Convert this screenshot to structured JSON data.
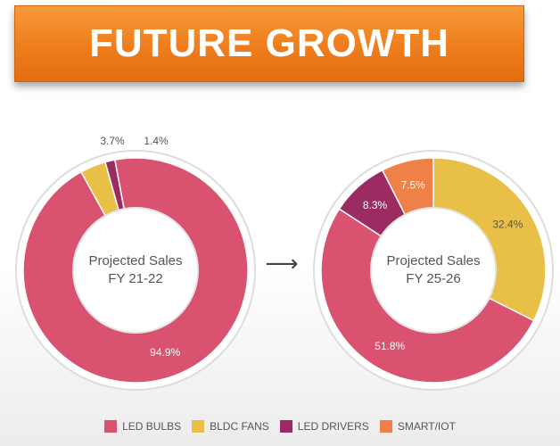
{
  "banner": {
    "title": "FUTURE GROWTH"
  },
  "colors": {
    "led_bulbs": "#d9526f",
    "bldc_fans": "#e8c047",
    "led_drivers": "#9b2c62",
    "smart_iot": "#ef8048"
  },
  "arrow_text": "⟶",
  "chart_data": [
    {
      "type": "pie",
      "variant": "donut",
      "title": "",
      "center_label": [
        "Projected Sales",
        "FY 21-22"
      ],
      "categories": [
        "LED BULBS",
        "BLDC FANS",
        "LED DRIVERS"
      ],
      "values": [
        94.9,
        3.7,
        1.4
      ],
      "labels": [
        "94.9%",
        "3.7%",
        "1.4%"
      ]
    },
    {
      "type": "pie",
      "variant": "donut",
      "title": "",
      "center_label": [
        "Projected Sales",
        "FY 25-26"
      ],
      "categories": [
        "BLDC FANS",
        "LED BULBS",
        "LED DRIVERS",
        "SMART/IOT"
      ],
      "values": [
        32.4,
        51.8,
        8.3,
        7.5
      ],
      "labels": [
        "32.4%",
        "51.8%",
        "8.3%",
        "7.5%"
      ]
    }
  ],
  "legend": [
    {
      "label": "LED BULBS",
      "color_key": "led_bulbs"
    },
    {
      "label": "BLDC FANS",
      "color_key": "bldc_fans"
    },
    {
      "label": "LED DRIVERS",
      "color_key": "led_drivers"
    },
    {
      "label": "SMART/IOT",
      "color_key": "smart_iot"
    }
  ]
}
